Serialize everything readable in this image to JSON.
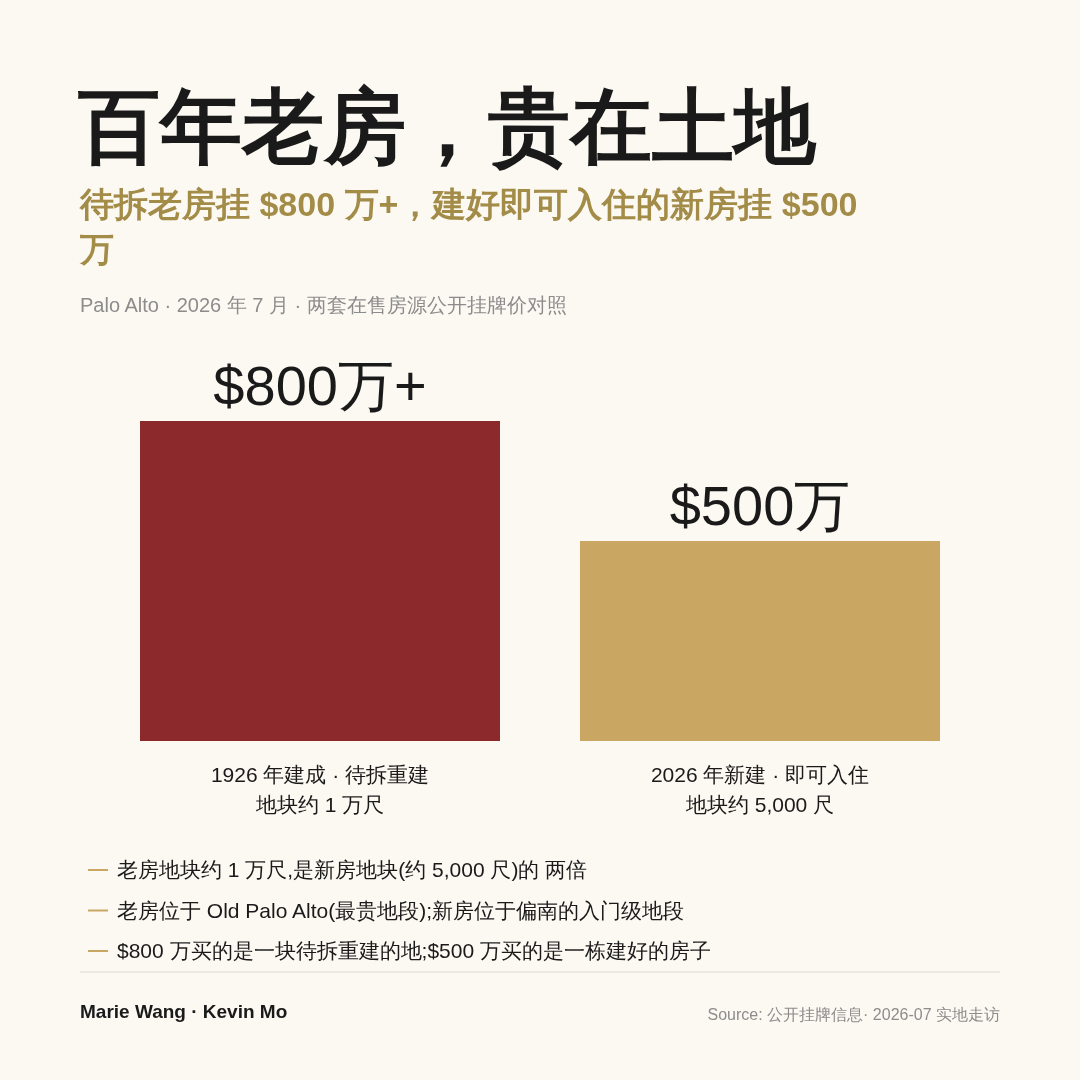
{
  "chart_data": {
    "type": "bar",
    "title": "百年老房，贵在土地",
    "subtitle": "待拆老房挂 $800 万+，建好即可入住的新房挂 $500 万",
    "categories": [
      "1926 年建成 · 待拆重建地块约 1 万尺",
      "2026 年新建 · 即可入住地块约 5,000 尺"
    ],
    "values": [
      800,
      500
    ],
    "colors": [
      "#8b292c",
      "#c9a763"
    ],
    "value_labels": [
      "$800万+",
      "$500万"
    ],
    "tick_labels": "x",
    "annotations": [
      "Palo Alto · 2026 年 7 月 · 两套在售房源公开挂牌价对照",
      "老房地块约 1 万尺,是新房地块(约 5,000 尺)的 两倍",
      "老房位于 Old Palo Alto(最贵地段);新房位于偏南的入门级地段",
      "$800 万买的是一块待拆重建的地;$500 万买的是一栋建好的房子",
      "Marie Wang · Kevin Mo",
      "Source: 公开挂牌信息· 2026-07 实地走访"
    ]
  }
}
